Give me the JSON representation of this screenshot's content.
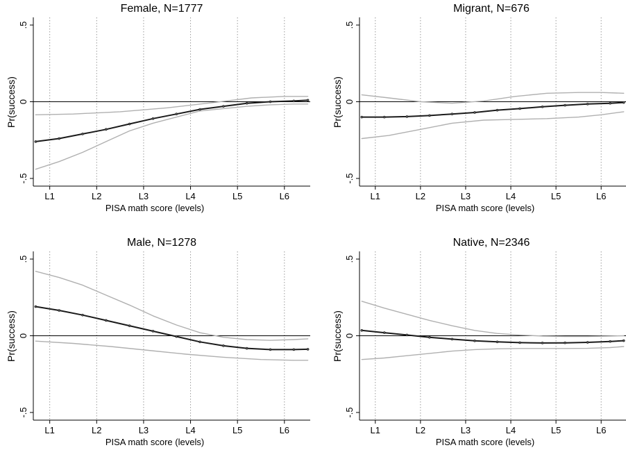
{
  "chart_data": [
    {
      "type": "line",
      "title": "Female, N=1777",
      "xlabel": "PISA math score (levels)",
      "ylabel": "Pr(success)",
      "x_ticks": [
        "L1",
        "L2",
        "L3",
        "L4",
        "L5",
        "L6"
      ],
      "y_ticks": [
        "-.5",
        "0",
        ".5"
      ],
      "xlim": [
        0.65,
        6.55
      ],
      "ylim": [
        -0.55,
        0.55
      ],
      "grid": "vertical dotted at level ticks",
      "reference_line_y": 0,
      "series": [
        {
          "role": "estimate",
          "color": "#1a1a1a",
          "markers": true,
          "x": [
            0.7,
            1.2,
            1.7,
            2.2,
            2.7,
            3.2,
            3.7,
            4.2,
            4.7,
            5.2,
            5.7,
            6.2,
            6.5
          ],
          "y": [
            -0.26,
            -0.24,
            -0.21,
            -0.18,
            -0.145,
            -0.11,
            -0.08,
            -0.05,
            -0.03,
            -0.01,
            0.0,
            0.005,
            0.01
          ]
        },
        {
          "role": "upper-ci",
          "color": "#b0b0b0",
          "markers": false,
          "x": [
            0.7,
            1.5,
            2.5,
            3.5,
            4.5,
            5.3,
            6.0,
            6.5
          ],
          "y": [
            -0.085,
            -0.08,
            -0.065,
            -0.04,
            -0.005,
            0.025,
            0.035,
            0.035
          ]
        },
        {
          "role": "lower-ci",
          "color": "#b0b0b0",
          "markers": false,
          "x": [
            0.7,
            1.2,
            1.7,
            2.2,
            2.7,
            3.2,
            3.7,
            4.2,
            4.7,
            5.2,
            5.7,
            6.2,
            6.5
          ],
          "y": [
            -0.44,
            -0.39,
            -0.33,
            -0.26,
            -0.19,
            -0.14,
            -0.1,
            -0.06,
            -0.045,
            -0.03,
            -0.02,
            -0.015,
            -0.015
          ]
        }
      ]
    },
    {
      "type": "line",
      "title": "Migrant, N=676",
      "xlabel": "PISA math score (levels)",
      "ylabel": "Pr(success)",
      "x_ticks": [
        "L1",
        "L2",
        "L3",
        "L4",
        "L5",
        "L6"
      ],
      "y_ticks": [
        "-.5",
        "0",
        ".5"
      ],
      "xlim": [
        0.65,
        6.55
      ],
      "ylim": [
        -0.55,
        0.55
      ],
      "grid": "vertical dotted at level ticks",
      "reference_line_y": 0,
      "series": [
        {
          "role": "estimate",
          "color": "#1a1a1a",
          "markers": true,
          "x": [
            0.7,
            1.2,
            1.7,
            2.2,
            2.7,
            3.2,
            3.7,
            4.2,
            4.7,
            5.2,
            5.7,
            6.2,
            6.5
          ],
          "y": [
            -0.1,
            -0.1,
            -0.097,
            -0.09,
            -0.08,
            -0.07,
            -0.055,
            -0.045,
            -0.033,
            -0.023,
            -0.015,
            -0.01,
            -0.005
          ]
        },
        {
          "role": "upper-ci",
          "color": "#b0b0b0",
          "markers": false,
          "x": [
            0.7,
            1.3,
            2.0,
            2.7,
            3.4,
            4.1,
            4.8,
            5.5,
            6.0,
            6.5
          ],
          "y": [
            0.045,
            0.025,
            0.0,
            -0.01,
            0.005,
            0.035,
            0.055,
            0.06,
            0.06,
            0.055
          ]
        },
        {
          "role": "lower-ci",
          "color": "#b0b0b0",
          "markers": false,
          "x": [
            0.7,
            1.3,
            2.0,
            2.7,
            3.4,
            4.1,
            4.8,
            5.5,
            6.0,
            6.5
          ],
          "y": [
            -0.24,
            -0.22,
            -0.18,
            -0.14,
            -0.12,
            -0.115,
            -0.11,
            -0.1,
            -0.085,
            -0.065
          ]
        }
      ]
    },
    {
      "type": "line",
      "title": "Male, N=1278",
      "xlabel": "PISA math score (levels)",
      "ylabel": "Pr(success)",
      "x_ticks": [
        "L1",
        "L2",
        "L3",
        "L4",
        "L5",
        "L6"
      ],
      "y_ticks": [
        "-.5",
        "0",
        ".5"
      ],
      "xlim": [
        0.65,
        6.55
      ],
      "ylim": [
        -0.55,
        0.55
      ],
      "grid": "vertical dotted at level ticks",
      "reference_line_y": 0,
      "series": [
        {
          "role": "estimate",
          "color": "#1a1a1a",
          "markers": true,
          "x": [
            0.7,
            1.2,
            1.7,
            2.2,
            2.7,
            3.2,
            3.7,
            4.2,
            4.7,
            5.2,
            5.7,
            6.2,
            6.5
          ],
          "y": [
            0.19,
            0.165,
            0.135,
            0.1,
            0.065,
            0.03,
            -0.005,
            -0.04,
            -0.065,
            -0.082,
            -0.09,
            -0.09,
            -0.088
          ]
        },
        {
          "role": "upper-ci",
          "color": "#b0b0b0",
          "markers": false,
          "x": [
            0.7,
            1.2,
            1.7,
            2.2,
            2.7,
            3.2,
            3.7,
            4.2,
            4.7,
            5.2,
            5.7,
            6.2,
            6.5
          ],
          "y": [
            0.42,
            0.38,
            0.33,
            0.265,
            0.2,
            0.13,
            0.07,
            0.02,
            -0.01,
            -0.025,
            -0.03,
            -0.025,
            -0.02
          ]
        },
        {
          "role": "lower-ci",
          "color": "#b0b0b0",
          "markers": false,
          "x": [
            0.7,
            1.5,
            2.3,
            3.1,
            3.9,
            4.7,
            5.5,
            6.2,
            6.5
          ],
          "y": [
            -0.035,
            -0.05,
            -0.07,
            -0.095,
            -0.12,
            -0.14,
            -0.155,
            -0.16,
            -0.16
          ]
        }
      ]
    },
    {
      "type": "line",
      "title": "Native, N=2346",
      "xlabel": "PISA math score (levels)",
      "ylabel": "Pr(success)",
      "x_ticks": [
        "L1",
        "L2",
        "L3",
        "L4",
        "L5",
        "L6"
      ],
      "y_ticks": [
        "-.5",
        "0",
        ".5"
      ],
      "xlim": [
        0.65,
        6.55
      ],
      "ylim": [
        -0.55,
        0.55
      ],
      "grid": "vertical dotted at level ticks",
      "reference_line_y": 0,
      "series": [
        {
          "role": "estimate",
          "color": "#1a1a1a",
          "markers": true,
          "x": [
            0.7,
            1.2,
            1.7,
            2.2,
            2.7,
            3.2,
            3.7,
            4.2,
            4.7,
            5.2,
            5.7,
            6.2,
            6.5
          ],
          "y": [
            0.035,
            0.02,
            0.005,
            -0.01,
            -0.022,
            -0.033,
            -0.04,
            -0.045,
            -0.047,
            -0.046,
            -0.043,
            -0.037,
            -0.032
          ]
        },
        {
          "role": "upper-ci",
          "color": "#b0b0b0",
          "markers": false,
          "x": [
            0.7,
            1.2,
            1.7,
            2.2,
            2.7,
            3.2,
            3.7,
            4.2,
            4.7,
            5.2,
            5.7,
            6.2,
            6.5
          ],
          "y": [
            0.225,
            0.18,
            0.14,
            0.1,
            0.065,
            0.035,
            0.015,
            0.005,
            -0.002,
            -0.005,
            -0.005,
            -0.002,
            0.0
          ]
        },
        {
          "role": "lower-ci",
          "color": "#b0b0b0",
          "markers": false,
          "x": [
            0.7,
            1.2,
            1.7,
            2.2,
            2.7,
            3.2,
            3.7,
            4.2,
            4.7,
            5.2,
            5.7,
            6.2,
            6.5
          ],
          "y": [
            -0.155,
            -0.145,
            -0.13,
            -0.115,
            -0.1,
            -0.09,
            -0.085,
            -0.083,
            -0.083,
            -0.083,
            -0.082,
            -0.077,
            -0.07
          ]
        }
      ]
    }
  ]
}
